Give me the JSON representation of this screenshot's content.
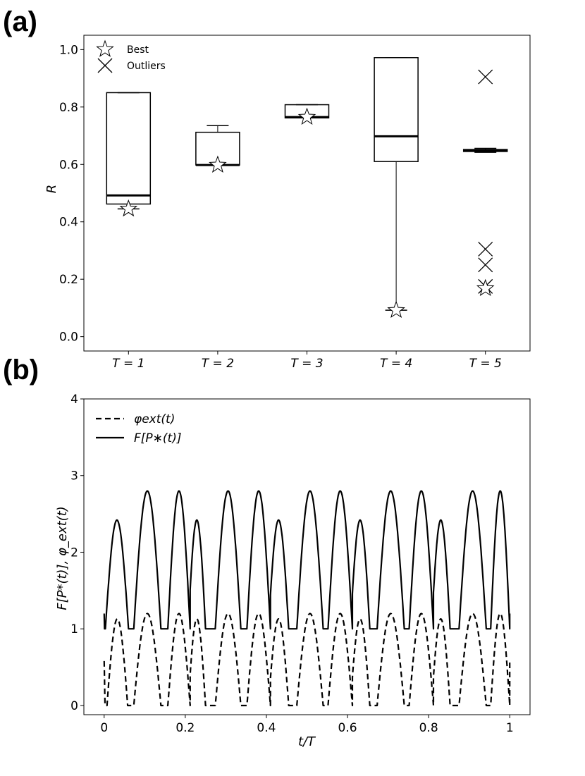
{
  "panels": {
    "a_label": "(a)",
    "b_label": "(b)"
  },
  "chart_data": [
    {
      "type": "box",
      "title": "",
      "xlabel": "",
      "ylabel": "R",
      "ylim": [
        -0.05,
        1.05
      ],
      "yticks": [
        "0.0",
        "0.2",
        "0.4",
        "0.6",
        "0.8",
        "1.0"
      ],
      "categories": [
        "T = 1",
        "T = 2",
        "T = 3",
        "T = 4",
        "T = 5"
      ],
      "boxes": [
        {
          "category": "T = 1",
          "whisker_low": 0.445,
          "q1": 0.462,
          "median": 0.492,
          "q3": 0.85,
          "whisker_high": 0.85,
          "best": 0.445,
          "outliers": []
        },
        {
          "category": "T = 2",
          "whisker_low": 0.598,
          "q1": 0.598,
          "median": 0.598,
          "q3": 0.712,
          "whisker_high": 0.735,
          "best": 0.598,
          "outliers": []
        },
        {
          "category": "T = 3",
          "whisker_low": 0.762,
          "q1": 0.762,
          "median": 0.765,
          "q3": 0.808,
          "whisker_high": 0.808,
          "best": 0.765,
          "outliers": []
        },
        {
          "category": "T = 4",
          "whisker_low": 0.092,
          "q1": 0.61,
          "median": 0.698,
          "q3": 0.972,
          "whisker_high": 0.972,
          "best": 0.092,
          "outliers": []
        },
        {
          "category": "T = 5",
          "whisker_low": 0.642,
          "q1": 0.645,
          "median": 0.648,
          "q3": 0.652,
          "whisker_high": 0.656,
          "best": 0.168,
          "outliers": [
            0.905,
            0.305,
            0.25,
            0.175
          ]
        }
      ],
      "legend": {
        "placement": "top-left",
        "entries": [
          {
            "symbol": "star",
            "label": "Best"
          },
          {
            "symbol": "x",
            "label": "Outliers"
          }
        ]
      }
    },
    {
      "type": "line",
      "title": "",
      "xlabel": "t/T",
      "ylabel": "F[P*(t)], φ_ext(t)",
      "xlim": [
        -0.05,
        1.05
      ],
      "ylim": [
        -0.12,
        4.0
      ],
      "xticks": [
        "0",
        "0.2",
        "0.4",
        "0.6",
        "0.8",
        "1"
      ],
      "yticks": [
        "0",
        "1",
        "2",
        "3",
        "4"
      ],
      "legend": {
        "placement": "top-left",
        "entries": [
          {
            "style": "dashed",
            "label": "φext(t)"
          },
          {
            "style": "solid",
            "label": "F[P∗(t)]"
          }
        ]
      },
      "series": [
        {
          "name": "F[P∗(t)]",
          "style": "solid",
          "baseline": 1.0,
          "start_value": 1.2,
          "end_value": 1.2,
          "humps": [
            {
              "start": 0.003,
              "end": 0.06,
              "peak": 2.42
            },
            {
              "start": 0.073,
              "end": 0.14,
              "peak": 2.8
            },
            {
              "start": 0.157,
              "end": 0.212,
              "peak": 2.8
            },
            {
              "start": 0.207,
              "end": 0.25,
              "peak": 2.42
            },
            {
              "start": 0.274,
              "end": 0.337,
              "peak": 2.8
            },
            {
              "start": 0.352,
              "end": 0.41,
              "peak": 2.8
            },
            {
              "start": 0.405,
              "end": 0.455,
              "peak": 2.42
            },
            {
              "start": 0.475,
              "end": 0.54,
              "peak": 2.8
            },
            {
              "start": 0.552,
              "end": 0.612,
              "peak": 2.8
            },
            {
              "start": 0.607,
              "end": 0.655,
              "peak": 2.42
            },
            {
              "start": 0.673,
              "end": 0.74,
              "peak": 2.8
            },
            {
              "start": 0.752,
              "end": 0.812,
              "peak": 2.8
            },
            {
              "start": 0.807,
              "end": 0.853,
              "peak": 2.42
            },
            {
              "start": 0.875,
              "end": 0.942,
              "peak": 2.8
            },
            {
              "start": 0.953,
              "end": 1.0,
              "peak": 2.8
            }
          ]
        },
        {
          "name": "φext(t)",
          "style": "dashed",
          "baseline": 0.0,
          "start_value": 0.58,
          "end_value": 0.58,
          "humps": [
            {
              "start": 0.007,
              "end": 0.058,
              "peak": 1.13
            },
            {
              "start": 0.073,
              "end": 0.14,
              "peak": 1.2
            },
            {
              "start": 0.157,
              "end": 0.212,
              "peak": 1.2
            },
            {
              "start": 0.207,
              "end": 0.25,
              "peak": 1.13
            },
            {
              "start": 0.274,
              "end": 0.337,
              "peak": 1.2
            },
            {
              "start": 0.352,
              "end": 0.41,
              "peak": 1.2
            },
            {
              "start": 0.405,
              "end": 0.455,
              "peak": 1.13
            },
            {
              "start": 0.475,
              "end": 0.54,
              "peak": 1.2
            },
            {
              "start": 0.552,
              "end": 0.612,
              "peak": 1.2
            },
            {
              "start": 0.607,
              "end": 0.655,
              "peak": 1.13
            },
            {
              "start": 0.673,
              "end": 0.74,
              "peak": 1.2
            },
            {
              "start": 0.752,
              "end": 0.812,
              "peak": 1.2
            },
            {
              "start": 0.807,
              "end": 0.853,
              "peak": 1.13
            },
            {
              "start": 0.875,
              "end": 0.942,
              "peak": 1.2
            },
            {
              "start": 0.953,
              "end": 1.0,
              "peak": 1.2
            }
          ]
        }
      ]
    }
  ]
}
